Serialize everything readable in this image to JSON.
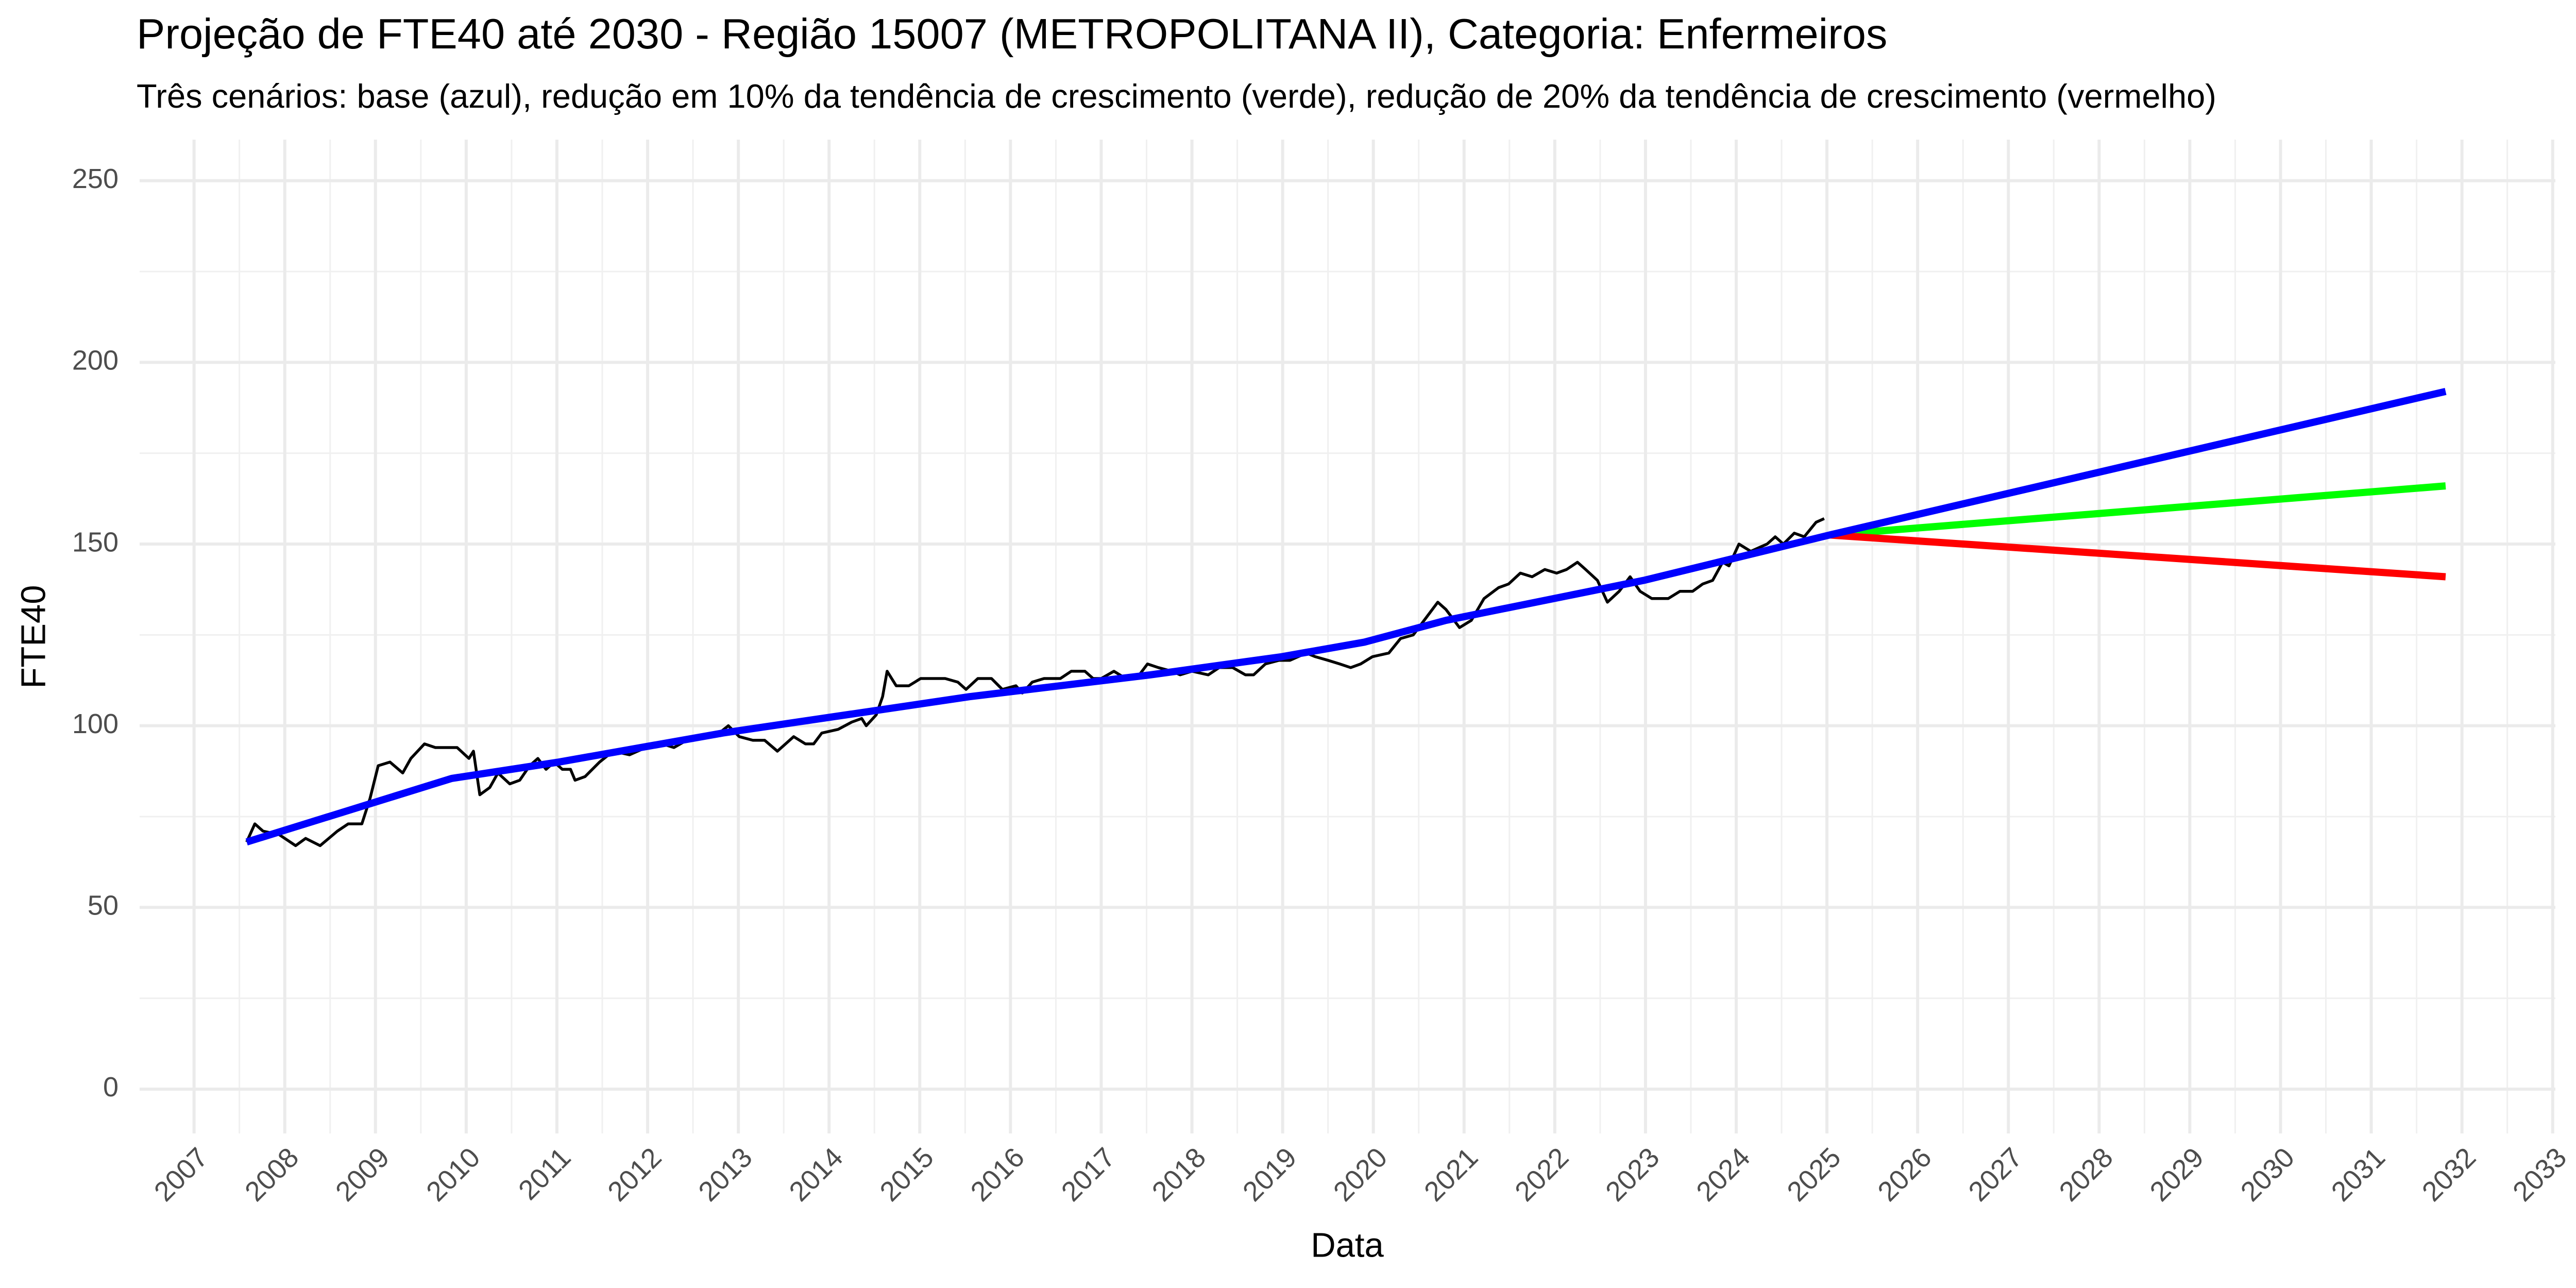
{
  "chart_data": {
    "type": "line",
    "title": "Projeção de FTE40 até 2030 - Região 15007 (METROPOLITANA II), Categoria: Enfermeiros",
    "subtitle": "Três cenários: base (azul), redução em 10% da tendência de crescimento (verde), redução de 20% da tendência de crescimento (vermelho)",
    "x_label": "Data",
    "y_label": "FTE40",
    "xlim": [
      2006.4,
      2033.03
    ],
    "ylim": [
      -12.2,
      261.3
    ],
    "xticks": [
      2007,
      2008,
      2009,
      2010,
      2011,
      2012,
      2013,
      2014,
      2015,
      2016,
      2017,
      2018,
      2019,
      2020,
      2021,
      2022,
      2023,
      2024,
      2025,
      2026,
      2027,
      2028,
      2029,
      2030,
      2031,
      2032,
      2033
    ],
    "yticks": [
      0,
      50,
      100,
      150,
      200,
      250
    ],
    "grid": true,
    "series": [
      {
        "color": "#000000",
        "x": [
          2007.58,
          2007.67,
          2007.76,
          2007.94,
          2008.12,
          2008.23,
          2008.39,
          2008.58,
          2008.7,
          2008.85,
          2008.94,
          2009.03,
          2009.16,
          2009.3,
          2009.39,
          2009.54,
          2009.66,
          2009.9,
          2010.03,
          2010.08,
          2010.15,
          2010.26,
          2010.35,
          2010.48,
          2010.59,
          2010.7,
          2010.79,
          2010.88,
          2010.97,
          2011.06,
          2011.15,
          2011.2,
          2011.31,
          2011.47,
          2011.62,
          2011.8,
          2011.98,
          2012.16,
          2012.29,
          2012.43,
          2012.62,
          2012.74,
          2012.89,
          2013.01,
          2013.16,
          2013.29,
          2013.43,
          2013.61,
          2013.74,
          2013.83,
          2013.92,
          2014.1,
          2014.25,
          2014.36,
          2014.41,
          2014.52,
          2014.59,
          2014.64,
          2014.74,
          2014.88,
          2015.01,
          2015.28,
          2015.42,
          2015.51,
          2015.64,
          2015.79,
          2015.91,
          2016.06,
          2016.13,
          2016.24,
          2016.37,
          2016.55,
          2016.67,
          2016.82,
          2016.91,
          2017.0,
          2017.14,
          2017.27,
          2017.42,
          2017.51,
          2017.63,
          2017.78,
          2017.87,
          2018.0,
          2018.18,
          2018.3,
          2018.45,
          2018.59,
          2018.68,
          2018.81,
          2018.96,
          2019.08,
          2019.26,
          2019.36,
          2019.5,
          2019.63,
          2019.75,
          2019.86,
          2019.99,
          2020.17,
          2020.3,
          2020.44,
          2020.59,
          2020.71,
          2020.8,
          2020.95,
          2021.08,
          2021.22,
          2021.38,
          2021.49,
          2021.62,
          2021.75,
          2021.89,
          2022.02,
          2022.13,
          2022.25,
          2022.34,
          2022.47,
          2022.58,
          2022.71,
          2022.83,
          2022.94,
          2023.07,
          2023.25,
          2023.38,
          2023.52,
          2023.63,
          2023.74,
          2023.85,
          2023.92,
          2024.03,
          2024.16,
          2024.25,
          2024.34,
          2024.43,
          2024.52,
          2024.64,
          2024.75,
          2024.88,
          2024.97
        ],
        "values": [
          68,
          73,
          71,
          70,
          67,
          69,
          67,
          71,
          73,
          73,
          80,
          89,
          90,
          87,
          91,
          95,
          94,
          94,
          91,
          93,
          81,
          83,
          87,
          84,
          85,
          89,
          91,
          88,
          90,
          88,
          88,
          85,
          86,
          90,
          93,
          92,
          94,
          95,
          94,
          96,
          97,
          97,
          100,
          97,
          96,
          96,
          93,
          97,
          95,
          95,
          98,
          99,
          101,
          102,
          100,
          103,
          108,
          115,
          111,
          111,
          113,
          113,
          112,
          110,
          113,
          113,
          110,
          111,
          109,
          112,
          113,
          113,
          115,
          115,
          113,
          113,
          115,
          113,
          114,
          117,
          116,
          115,
          114,
          115,
          114,
          116,
          116,
          114,
          114,
          117,
          118,
          118,
          120,
          119,
          118,
          117,
          116,
          117,
          119,
          120,
          124,
          125,
          130,
          134,
          132,
          127,
          129,
          135,
          138,
          139,
          142,
          141,
          143,
          142,
          143,
          145,
          143,
          140,
          134,
          137,
          141,
          137,
          135,
          135,
          137,
          137,
          139,
          140,
          145,
          144,
          150,
          148,
          149,
          150,
          152,
          150,
          153,
          152,
          156,
          157
        ]
      },
      {
        "color": "#00ff00",
        "x": [
          2025.03,
          2031.82
        ],
        "values": [
          152.5,
          166
        ]
      },
      {
        "color": "#ff0000",
        "x": [
          2025.03,
          2031.82
        ],
        "values": [
          152.5,
          141
        ]
      },
      {
        "color": "#0000ff",
        "x": [
          2007.58,
          2009.84,
          2011.02,
          2012.83,
          2015.55,
          2017.54,
          2018.99,
          2019.9,
          2020.8,
          2022.98,
          2025.03,
          2031.82
        ],
        "values": [
          68,
          85.5,
          90,
          98,
          108,
          114,
          119,
          123,
          129,
          140,
          152.5,
          192
        ]
      }
    ]
  }
}
